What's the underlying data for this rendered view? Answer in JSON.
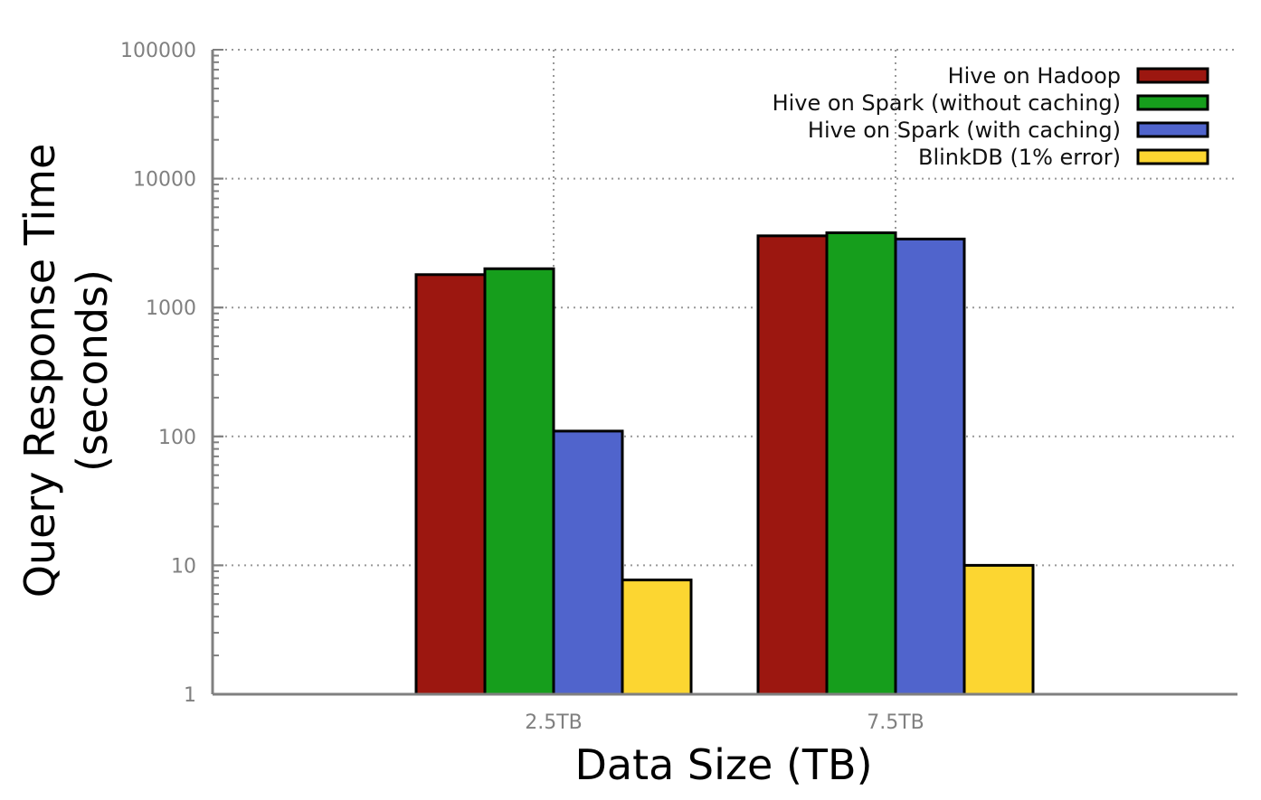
{
  "chart_data": {
    "type": "bar",
    "title": "",
    "xlabel": "Data Size (TB)",
    "ylabel_lines": [
      "Query Response Time",
      "(seconds)"
    ],
    "categories": [
      "2.5TB",
      "7.5TB"
    ],
    "yscale": "log",
    "ylim": [
      1,
      100000
    ],
    "yticks": [
      1,
      10,
      100,
      1000,
      10000,
      100000
    ],
    "ytick_labels": [
      "1",
      "10",
      "100",
      "1000",
      "10000",
      "100000"
    ],
    "grid": true,
    "legend_position": "top-right",
    "series": [
      {
        "name": "Hive on Hadoop",
        "color": "#9c1710",
        "values": [
          1800,
          3600
        ]
      },
      {
        "name": "Hive on Spark (without caching)",
        "color": "#169e1c",
        "values": [
          2000,
          3800
        ]
      },
      {
        "name": "Hive on Spark (with caching)",
        "color": "#5064cc",
        "values": [
          110,
          3400
        ]
      },
      {
        "name": "BlinkDB (1% error)",
        "color": "#fcd631",
        "values": [
          7.7,
          10
        ]
      }
    ]
  }
}
